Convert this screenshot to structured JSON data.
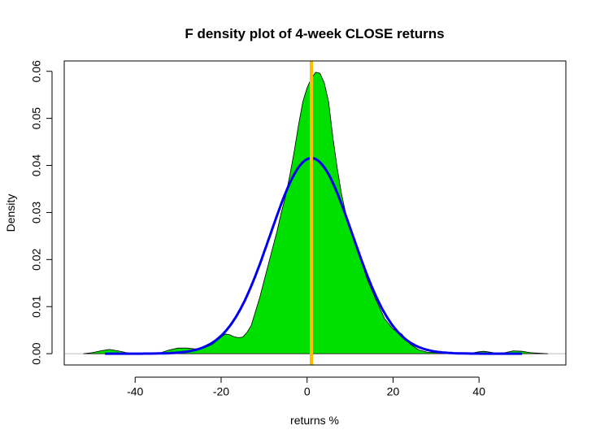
{
  "chart_data": {
    "type": "area",
    "title": "F density plot of 4-week CLOSE returns",
    "xlabel": "returns %",
    "ylabel": "Density",
    "xlim": [
      -56.5,
      60.2
    ],
    "ylim": [
      -0.0024,
      0.0622
    ],
    "x_ticks": [
      "-40",
      "-20",
      "0",
      "20",
      "40"
    ],
    "y_ticks": [
      "0.00",
      "0.01",
      "0.02",
      "0.03",
      "0.04",
      "0.05",
      "0.06"
    ],
    "grid": false,
    "legend": "none",
    "vertical_line_x": 1.0,
    "series": [
      {
        "kind": "density",
        "color": "#00e000",
        "x": [
          -52,
          -50,
          -48,
          -46,
          -44,
          -42,
          -40,
          -38,
          -36,
          -34,
          -32,
          -30,
          -28,
          -26,
          -24,
          -22,
          -20,
          -19,
          -18,
          -17,
          -16,
          -15,
          -14,
          -13,
          -12,
          -11,
          -10,
          -9,
          -8,
          -7,
          -6,
          -5,
          -4,
          -3,
          -2,
          -1,
          0,
          1,
          2,
          3,
          4,
          5,
          6,
          7,
          8,
          9,
          10,
          11,
          12,
          13,
          14,
          16,
          18,
          20,
          22,
          24,
          26,
          28,
          30,
          32,
          34,
          36,
          38,
          40,
          41,
          42,
          44,
          46,
          48,
          50,
          52,
          54,
          56
        ],
        "y": [
          0.0,
          0.0002,
          0.0006,
          0.0009,
          0.0006,
          0.0002,
          0.0,
          0.0,
          0.0,
          0.0002,
          0.0008,
          0.0012,
          0.0012,
          0.001,
          0.0012,
          0.002,
          0.0035,
          0.0042,
          0.004,
          0.0036,
          0.0034,
          0.0035,
          0.0045,
          0.006,
          0.009,
          0.012,
          0.0155,
          0.019,
          0.0225,
          0.026,
          0.03,
          0.0335,
          0.038,
          0.043,
          0.0485,
          0.0535,
          0.0565,
          0.0585,
          0.0598,
          0.0596,
          0.0575,
          0.0535,
          0.046,
          0.0395,
          0.034,
          0.0298,
          0.0265,
          0.0238,
          0.021,
          0.0185,
          0.0158,
          0.0115,
          0.0075,
          0.0052,
          0.0042,
          0.002,
          0.0008,
          0.0003,
          0.0002,
          0.0001,
          0.0,
          0.0,
          0.0001,
          0.0004,
          0.0005,
          0.0004,
          0.0001,
          0.0002,
          0.0006,
          0.0005,
          0.0002,
          0.0001,
          0.0
        ]
      },
      {
        "kind": "normal_curve",
        "color": "#0000ee",
        "mean": 1.0,
        "sd": 9.6,
        "x_range": [
          -47,
          50
        ]
      }
    ]
  }
}
